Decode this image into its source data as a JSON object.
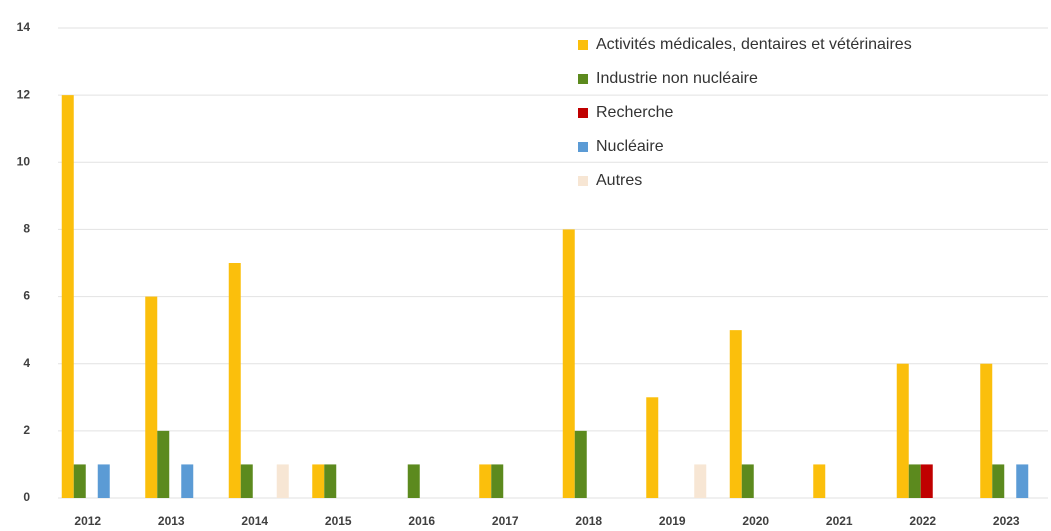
{
  "chart_data": {
    "type": "bar",
    "categories": [
      "2012",
      "2013",
      "2014",
      "2015",
      "2016",
      "2017",
      "2018",
      "2019",
      "2020",
      "2021",
      "2022",
      "2023"
    ],
    "series": [
      {
        "name": "Activités médicales, dentaires et vétérinaires",
        "color": "#fbbf0c",
        "values": [
          12,
          6,
          7,
          1,
          0,
          1,
          8,
          3,
          5,
          1,
          4,
          4
        ]
      },
      {
        "name": "Industrie non nucléaire",
        "color": "#5c8a1e",
        "values": [
          1,
          2,
          1,
          1,
          1,
          1,
          2,
          0,
          1,
          0,
          1,
          1
        ]
      },
      {
        "name": "Recherche",
        "color": "#c00000",
        "values": [
          0,
          0,
          0,
          0,
          0,
          0,
          0,
          0,
          0,
          0,
          1,
          0
        ]
      },
      {
        "name": "Nucléaire",
        "color": "#5b9bd5",
        "values": [
          1,
          1,
          0,
          0,
          0,
          0,
          0,
          0,
          0,
          0,
          0,
          1
        ]
      },
      {
        "name": "Autres",
        "color": "#f7e6d4",
        "values": [
          0,
          0,
          1,
          0,
          0,
          0,
          0,
          1,
          0,
          0,
          0,
          0
        ]
      }
    ],
    "ylim": [
      0,
      14
    ],
    "yticks": [
      0,
      2,
      4,
      6,
      8,
      10,
      12,
      14
    ],
    "grid": true
  }
}
